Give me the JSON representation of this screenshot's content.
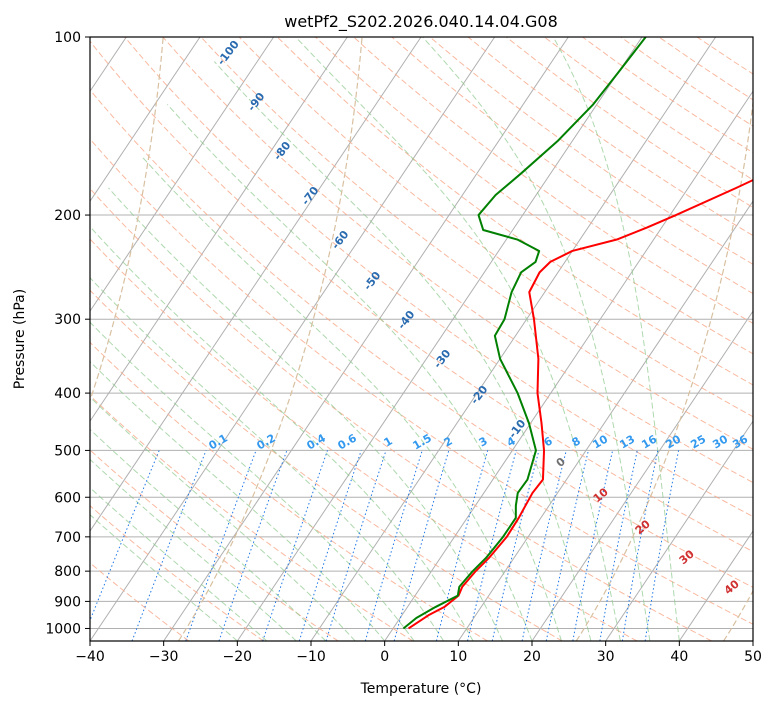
{
  "chart_data": {
    "type": "skewt",
    "title": "wetPf2_S202.2026.040.14.04.G08",
    "xlabel": "Temperature (°C)",
    "ylabel": "Pressure (hPa)",
    "xlim": [
      -40,
      50
    ],
    "ylim": [
      1050,
      100
    ],
    "x_ticks": [
      -40,
      -30,
      -20,
      -10,
      0,
      10,
      20,
      30,
      40,
      50
    ],
    "y_ticks": [
      100,
      200,
      300,
      400,
      500,
      600,
      700,
      800,
      900,
      1000
    ],
    "series": [
      {
        "name": "temperature",
        "color": "#ff0000",
        "points": [
          {
            "p": 1000,
            "t": 2.1
          },
          {
            "p": 950,
            "t": 3.6
          },
          {
            "p": 920,
            "t": 5.0
          },
          {
            "p": 880,
            "t": 5.9
          },
          {
            "p": 850,
            "t": 5.6
          },
          {
            "p": 800,
            "t": 6.0
          },
          {
            "p": 760,
            "t": 6.6
          },
          {
            "p": 700,
            "t": 7.1
          },
          {
            "p": 650,
            "t": 7.0
          },
          {
            "p": 620,
            "t": 6.8
          },
          {
            "p": 590,
            "t": 6.6
          },
          {
            "p": 560,
            "t": 6.8
          },
          {
            "p": 500,
            "t": 4.3
          },
          {
            "p": 450,
            "t": 1.5
          },
          {
            "p": 400,
            "t": -1.8
          },
          {
            "p": 350,
            "t": -4.8
          },
          {
            "p": 300,
            "t": -9.0
          },
          {
            "p": 270,
            "t": -12.1
          },
          {
            "p": 250,
            "t": -12.5
          },
          {
            "p": 240,
            "t": -12.0
          },
          {
            "p": 230,
            "t": -10.0
          },
          {
            "p": 220,
            "t": -5.0
          },
          {
            "p": 210,
            "t": -2.0
          },
          {
            "p": 200,
            "t": 0.8
          },
          {
            "p": 180,
            "t": 6.5
          },
          {
            "p": 160,
            "t": 12.5
          },
          {
            "p": 140,
            "t": 18.5
          },
          {
            "p": 120,
            "t": 24.0
          },
          {
            "p": 110,
            "t": 26.5
          },
          {
            "p": 100,
            "t": 28.0
          }
        ]
      },
      {
        "name": "dewpoint",
        "color": "#008000",
        "points": [
          {
            "p": 1000,
            "t": 1.4
          },
          {
            "p": 960,
            "t": 2.2
          },
          {
            "p": 920,
            "t": 3.8
          },
          {
            "p": 880,
            "t": 5.8
          },
          {
            "p": 850,
            "t": 5.2
          },
          {
            "p": 800,
            "t": 5.6
          },
          {
            "p": 760,
            "t": 6.2
          },
          {
            "p": 700,
            "t": 6.6
          },
          {
            "p": 650,
            "t": 6.6
          },
          {
            "p": 620,
            "t": 5.5
          },
          {
            "p": 590,
            "t": 4.6
          },
          {
            "p": 560,
            "t": 4.7
          },
          {
            "p": 500,
            "t": 3.2
          },
          {
            "p": 450,
            "t": -0.2
          },
          {
            "p": 400,
            "t": -4.5
          },
          {
            "p": 350,
            "t": -10.0
          },
          {
            "p": 320,
            "t": -12.8
          },
          {
            "p": 300,
            "t": -13.0
          },
          {
            "p": 270,
            "t": -14.5
          },
          {
            "p": 250,
            "t": -15.0
          },
          {
            "p": 240,
            "t": -14.0
          },
          {
            "p": 230,
            "t": -14.5
          },
          {
            "p": 220,
            "t": -18.5
          },
          {
            "p": 212,
            "t": -24.0
          },
          {
            "p": 200,
            "t": -26.0
          },
          {
            "p": 185,
            "t": -25.5
          },
          {
            "p": 170,
            "t": -24.0
          },
          {
            "p": 150,
            "t": -22.0
          },
          {
            "p": 130,
            "t": -20.5
          },
          {
            "p": 115,
            "t": -20.0
          },
          {
            "p": 100,
            "t": -19.5
          }
        ]
      }
    ],
    "dry_adiabat_labels": [
      "-100",
      "-90",
      "-80",
      "-70",
      "-60",
      "-50",
      "-40",
      "-30",
      "-20",
      "-10"
    ],
    "mixing_ratio_labels": [
      "0.1",
      "0.2",
      "0.4",
      "0.6",
      "1",
      "1.5",
      "2",
      "3",
      "4",
      "6",
      "8",
      "10",
      "13",
      "16",
      "20",
      "25",
      "30",
      "36"
    ],
    "wet_bulb_labels": [
      "0",
      "10",
      "20",
      "30",
      "40"
    ]
  }
}
